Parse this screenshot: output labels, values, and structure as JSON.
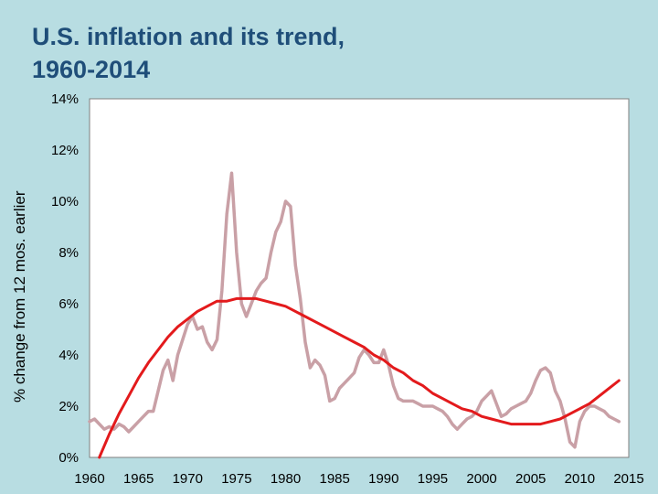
{
  "slide": {
    "title_line1": "U.S. inflation and its trend,",
    "title_line2": "1960-2014"
  },
  "chart_data": {
    "type": "line",
    "title": "U.S. inflation and its trend, 1960-2014",
    "xlabel": "",
    "ylabel": "% change from 12 mos. earlier",
    "xlim": [
      1960,
      2015
    ],
    "ylim": [
      0,
      14
    ],
    "x_ticks": [
      "1960",
      "1965",
      "1970",
      "1975",
      "1980",
      "1985",
      "1990",
      "1995",
      "2000",
      "2005",
      "2010",
      "2015"
    ],
    "y_ticks": [
      "0%",
      "2%",
      "4%",
      "6%",
      "8%",
      "10%",
      "12%",
      "14%"
    ],
    "grid": false,
    "legend": "none",
    "series": [
      {
        "color": "#c9a0a6",
        "x": [
          1960,
          1960.5,
          1961,
          1961.5,
          1962,
          1962.5,
          1963,
          1963.5,
          1964,
          1964.5,
          1965,
          1965.5,
          1966,
          1966.5,
          1967,
          1967.5,
          1968,
          1968.5,
          1969,
          1969.5,
          1970,
          1970.5,
          1971,
          1971.5,
          1972,
          1972.5,
          1973,
          1973.5,
          1974,
          1974.5,
          1975,
          1975.5,
          1976,
          1976.5,
          1977,
          1977.5,
          1978,
          1978.5,
          1979,
          1979.5,
          1980,
          1980.5,
          1981,
          1981.5,
          1982,
          1982.5,
          1983,
          1983.5,
          1984,
          1984.5,
          1985,
          1985.5,
          1986,
          1986.5,
          1987,
          1987.5,
          1988,
          1988.5,
          1989,
          1989.5,
          1990,
          1990.5,
          1991,
          1991.5,
          1992,
          1992.5,
          1993,
          1993.5,
          1994,
          1994.5,
          1995,
          1995.5,
          1996,
          1996.5,
          1997,
          1997.5,
          1998,
          1998.5,
          1999,
          1999.5,
          2000,
          2000.5,
          2001,
          2001.5,
          2002,
          2002.5,
          2003,
          2003.5,
          2004,
          2004.5,
          2005,
          2005.5,
          2006,
          2006.5,
          2007,
          2007.5,
          2008,
          2008.5,
          2009,
          2009.5,
          2010,
          2010.5,
          2011,
          2011.5,
          2012,
          2012.5,
          2013,
          2013.5,
          2014
        ],
        "values": [
          1.4,
          1.5,
          1.3,
          1.1,
          1.2,
          1.1,
          1.3,
          1.2,
          1.0,
          1.2,
          1.4,
          1.6,
          1.8,
          1.8,
          2.6,
          3.4,
          3.8,
          3.0,
          4.0,
          4.6,
          5.2,
          5.5,
          5.0,
          5.1,
          4.5,
          4.2,
          4.6,
          6.5,
          9.5,
          11.1,
          8.0,
          6.0,
          5.5,
          6.0,
          6.5,
          6.8,
          7.0,
          8.0,
          8.8,
          9.2,
          10.0,
          9.8,
          7.5,
          6.2,
          4.5,
          3.5,
          3.8,
          3.6,
          3.2,
          2.2,
          2.3,
          2.7,
          2.9,
          3.1,
          3.3,
          3.9,
          4.2,
          4.0,
          3.7,
          3.7,
          4.2,
          3.6,
          2.8,
          2.3,
          2.2,
          2.2,
          2.2,
          2.1,
          2.0,
          2.0,
          2.0,
          1.9,
          1.8,
          1.6,
          1.3,
          1.1,
          1.3,
          1.5,
          1.6,
          1.8,
          2.2,
          2.4,
          2.6,
          2.1,
          1.6,
          1.7,
          1.9,
          2.0,
          2.1,
          2.2,
          2.5,
          3.0,
          3.4,
          3.5,
          3.3,
          2.6,
          2.2,
          1.5,
          0.6,
          0.4,
          1.4,
          1.8,
          2.0,
          2.0,
          1.9,
          1.8,
          1.6,
          1.5,
          1.4
        ]
      },
      {
        "color": "#e31a1c",
        "x": [
          1961,
          1962,
          1963,
          1964,
          1965,
          1966,
          1967,
          1968,
          1969,
          1970,
          1971,
          1972,
          1973,
          1974,
          1975,
          1976,
          1977,
          1978,
          1979,
          1980,
          1981,
          1982,
          1983,
          1984,
          1985,
          1986,
          1987,
          1988,
          1989,
          1990,
          1991,
          1992,
          1993,
          1994,
          1995,
          1996,
          1997,
          1998,
          1999,
          2000,
          2001,
          2002,
          2003,
          2004,
          2005,
          2006,
          2007,
          2008,
          2009,
          2010,
          2011,
          2012,
          2013,
          2014
        ],
        "values": [
          0.0,
          0.9,
          1.7,
          2.4,
          3.1,
          3.7,
          4.2,
          4.7,
          5.1,
          5.4,
          5.7,
          5.9,
          6.1,
          6.1,
          6.2,
          6.2,
          6.2,
          6.1,
          6.0,
          5.9,
          5.7,
          5.5,
          5.3,
          5.1,
          4.9,
          4.7,
          4.5,
          4.3,
          4.0,
          3.8,
          3.5,
          3.3,
          3.0,
          2.8,
          2.5,
          2.3,
          2.1,
          1.9,
          1.8,
          1.6,
          1.5,
          1.4,
          1.3,
          1.3,
          1.3,
          1.3,
          1.4,
          1.5,
          1.7,
          1.9,
          2.1,
          2.4,
          2.7,
          3.0
        ]
      }
    ]
  }
}
